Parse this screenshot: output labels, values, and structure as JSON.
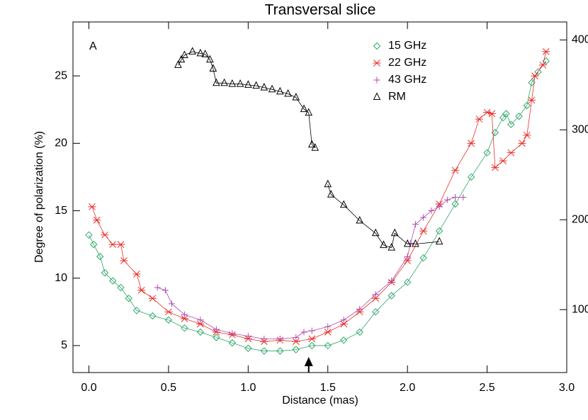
{
  "chart_data": {
    "type": "line",
    "title": "Transversal slice",
    "xlabel": "Distance (mas)",
    "ylabel": "Degree of polarization (%)",
    "annotation": "A",
    "arrow_x": 1.38,
    "legend": "upper right",
    "xlim": [
      -0.1,
      3.0
    ],
    "ylim": [
      3,
      29
    ],
    "y2lim": [
      30,
      420
    ],
    "xticks": [
      {
        "value": 0,
        "label": "0.0"
      },
      0.5,
      {
        "value": 1,
        "label": "1.0"
      },
      1.5,
      {
        "value": 2,
        "label": "2.0"
      },
      2.5,
      {
        "value": 3,
        "label": "3.0"
      }
    ],
    "yticks": [
      5,
      10,
      15,
      20,
      25
    ],
    "y2ticks": [
      100,
      200,
      300,
      400
    ],
    "series": [
      {
        "name": "15 GHz",
        "color": "#2ea868",
        "marker": "diamond",
        "x": [
          0.0,
          0.03,
          0.07,
          0.1,
          0.15,
          0.2,
          0.25,
          0.3,
          0.4,
          0.5,
          0.6,
          0.7,
          0.8,
          0.9,
          1.0,
          1.1,
          1.2,
          1.3,
          1.4,
          1.5,
          1.6,
          1.7,
          1.8,
          1.9,
          2.0,
          2.1,
          2.2,
          2.3,
          2.4,
          2.5,
          2.55,
          2.6,
          2.62,
          2.65,
          2.7,
          2.75,
          2.78,
          2.82,
          2.87
        ],
        "values": [
          13.2,
          12.5,
          11.6,
          10.4,
          9.8,
          9.3,
          8.5,
          7.6,
          7.2,
          6.9,
          6.3,
          6.0,
          5.6,
          5.2,
          4.8,
          4.6,
          4.6,
          4.7,
          5.0,
          5.0,
          5.4,
          6.0,
          7.5,
          8.7,
          9.7,
          11.5,
          13.5,
          15.5,
          17.5,
          19.3,
          20.8,
          21.9,
          22.2,
          21.4,
          22.0,
          22.8,
          24.5,
          25.3,
          26.1
        ]
      },
      {
        "name": "22 GHz",
        "color": "#e8302a",
        "marker": "x",
        "x": [
          0.02,
          0.05,
          0.1,
          0.15,
          0.2,
          0.22,
          0.3,
          0.33,
          0.4,
          0.5,
          0.6,
          0.7,
          0.8,
          0.9,
          1.0,
          1.1,
          1.2,
          1.3,
          1.4,
          1.5,
          1.6,
          1.7,
          1.8,
          1.9,
          2.0,
          2.1,
          2.2,
          2.3,
          2.4,
          2.45,
          2.5,
          2.53,
          2.55,
          2.6,
          2.65,
          2.72,
          2.75,
          2.78,
          2.8,
          2.85,
          2.87
        ],
        "values": [
          15.3,
          14.3,
          13.2,
          12.5,
          12.5,
          11.3,
          10.3,
          9.1,
          8.5,
          7.5,
          7.0,
          6.6,
          6.0,
          5.8,
          5.5,
          5.3,
          5.4,
          5.3,
          5.5,
          6.0,
          6.6,
          7.5,
          8.5,
          9.7,
          11.3,
          13.5,
          15.5,
          18.0,
          20.0,
          21.8,
          22.3,
          22.2,
          18.2,
          18.7,
          19.3,
          20.0,
          20.6,
          23.2,
          25.0,
          25.8,
          26.8
        ]
      },
      {
        "name": "43 GHz",
        "color": "#b048b0",
        "marker": "plus",
        "x": [
          0.43,
          0.48,
          0.52,
          0.6,
          0.7,
          0.8,
          0.9,
          1.0,
          1.1,
          1.2,
          1.3,
          1.35,
          1.4,
          1.5,
          1.6,
          1.7,
          1.8,
          1.9,
          2.0,
          2.02,
          2.05,
          2.1,
          2.15,
          2.2,
          2.25,
          2.3,
          2.35
        ],
        "values": [
          9.3,
          9.1,
          8.1,
          7.3,
          6.9,
          6.2,
          5.9,
          5.7,
          5.5,
          5.5,
          5.6,
          6.0,
          6.1,
          6.4,
          6.9,
          7.7,
          8.8,
          9.8,
          11.6,
          12.6,
          14.0,
          14.5,
          15.0,
          15.3,
          15.8,
          16.0,
          16.0
        ]
      },
      {
        "name": "RM",
        "color": "#000000",
        "marker": "triangle",
        "axis": "y2",
        "x": [
          0.56,
          0.58,
          0.6,
          0.65,
          0.7,
          0.73,
          0.76,
          0.78,
          0.8,
          0.85,
          0.9,
          0.95,
          1.0,
          1.05,
          1.1,
          1.15,
          1.2,
          1.25,
          1.3,
          1.35,
          1.38,
          1.4,
          1.42,
          1.46,
          1.5,
          1.52,
          1.6,
          1.7,
          1.8,
          1.85,
          1.9,
          1.92,
          2.0,
          2.05,
          2.2
        ],
        "values": [
          372,
          378,
          383,
          387,
          385,
          384,
          378,
          368,
          352,
          352,
          351,
          351,
          350,
          349,
          347,
          345,
          342.5,
          340,
          336,
          323,
          319,
          283.5,
          280,
          null,
          239.4,
          228,
          216.5,
          199,
          185,
          171.7,
          169,
          185,
          173,
          173,
          175.6
        ]
      }
    ]
  }
}
